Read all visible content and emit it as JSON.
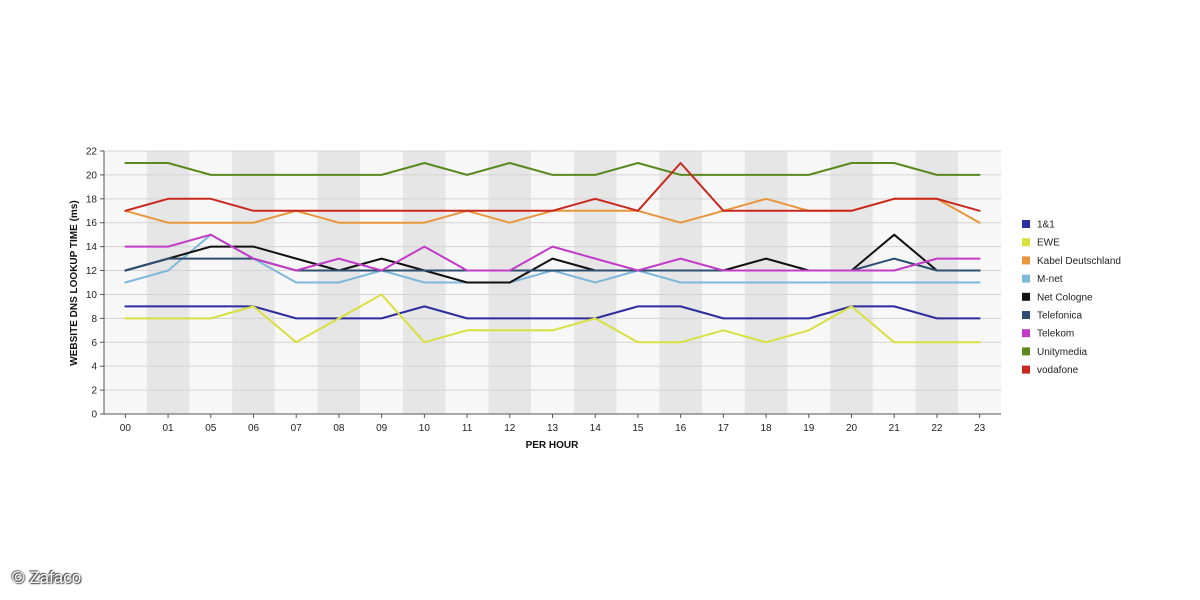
{
  "watermark": "© Zafaco",
  "chart_data": {
    "type": "line",
    "title": "",
    "xlabel": "PER HOUR",
    "ylabel": "WEBSITE DNS LOOKUP TIME (ms)",
    "categories": [
      "00",
      "01",
      "05",
      "06",
      "07",
      "08",
      "09",
      "10",
      "11",
      "12",
      "13",
      "14",
      "15",
      "16",
      "17",
      "18",
      "19",
      "20",
      "21",
      "22",
      "23"
    ],
    "ylim": [
      0,
      22
    ],
    "yticks": [
      0,
      2,
      4,
      6,
      8,
      10,
      12,
      14,
      16,
      18,
      20,
      22
    ],
    "grid": true,
    "legend_position": "right",
    "series": [
      {
        "name": "1&1",
        "color": "#2d2d9e",
        "values": [
          9,
          9,
          9,
          9,
          8,
          8,
          8,
          9,
          8,
          8,
          8,
          8,
          9,
          9,
          8,
          8,
          8,
          9,
          9,
          8,
          8
        ]
      },
      {
        "name": "EWE",
        "color": "#d8e040",
        "values": [
          8,
          8,
          8,
          9,
          6,
          8,
          10,
          6,
          7,
          7,
          7,
          8,
          6,
          6,
          7,
          6,
          7,
          9,
          6,
          6,
          6
        ]
      },
      {
        "name": "Kabel Deutschland",
        "color": "#e8963c",
        "values": [
          17,
          16,
          16,
          16,
          17,
          16,
          16,
          16,
          17,
          16,
          17,
          17,
          17,
          16,
          17,
          18,
          17,
          17,
          18,
          18,
          16
        ]
      },
      {
        "name": "M-net",
        "color": "#7fb8d8",
        "values": [
          11,
          12,
          15,
          13,
          11,
          11,
          12,
          11,
          11,
          11,
          12,
          11,
          12,
          11,
          11,
          11,
          11,
          11,
          11,
          11,
          11
        ]
      },
      {
        "name": "Net Cologne",
        "color": "#111111",
        "values": [
          12,
          13,
          14,
          14,
          13,
          12,
          13,
          12,
          11,
          11,
          13,
          12,
          12,
          12,
          12,
          13,
          12,
          12,
          15,
          12,
          12
        ]
      },
      {
        "name": "Telefonica",
        "color": "#2e4f70",
        "values": [
          12,
          13,
          13,
          13,
          12,
          12,
          12,
          12,
          12,
          12,
          12,
          12,
          12,
          12,
          12,
          12,
          12,
          12,
          13,
          12,
          12
        ]
      },
      {
        "name": "Telekom",
        "color": "#c23cc8",
        "values": [
          14,
          14,
          15,
          13,
          12,
          13,
          12,
          14,
          12,
          12,
          14,
          13,
          12,
          13,
          12,
          12,
          12,
          12,
          12,
          13,
          13
        ]
      },
      {
        "name": "Unitymedia",
        "color": "#5a8a1e",
        "values": [
          21,
          21,
          20,
          20,
          20,
          20,
          20,
          21,
          20,
          21,
          20,
          20,
          21,
          20,
          20,
          20,
          20,
          21,
          21,
          20,
          20
        ]
      },
      {
        "name": "vodafone",
        "color": "#c8281e",
        "values": [
          17,
          18,
          18,
          17,
          17,
          17,
          17,
          17,
          17,
          17,
          17,
          18,
          17,
          21,
          17,
          17,
          17,
          17,
          18,
          18,
          17
        ]
      }
    ]
  }
}
